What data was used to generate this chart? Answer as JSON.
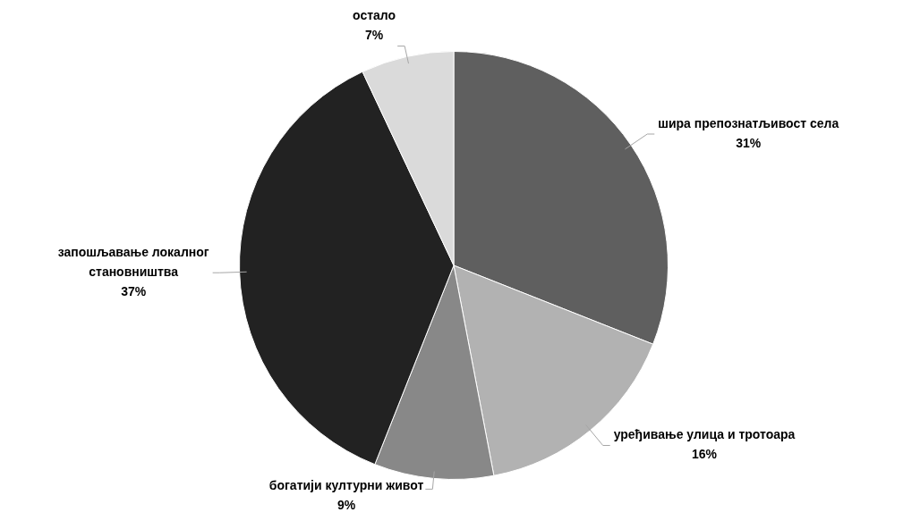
{
  "chart_data": {
    "type": "pie",
    "categories": [
      "шира препознатљивост села",
      "уређивање улица и тротоара",
      "богатији културни живот",
      "запошљавање локалног становништва",
      "остало"
    ],
    "values": [
      31,
      16,
      9,
      37,
      7
    ],
    "value_labels": [
      "31%",
      "16%",
      "9%",
      "37%",
      "7%"
    ],
    "colors": [
      "#5f5f5f",
      "#b2b2b2",
      "#888888",
      "#222222",
      "#dadada"
    ],
    "legend": false
  }
}
